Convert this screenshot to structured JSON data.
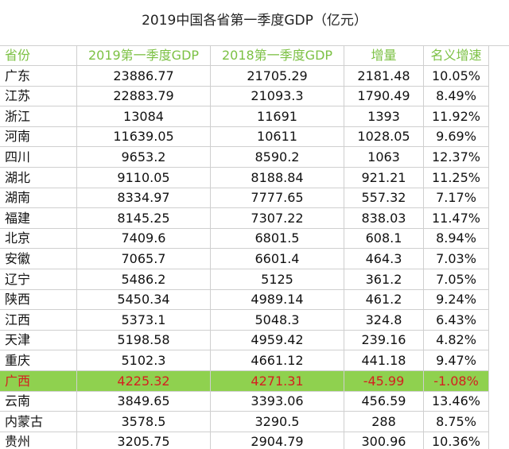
{
  "title": "2019中国各省第一季度GDP（亿元）",
  "table": {
    "headers": [
      "省份",
      "2019第一季度GDP",
      "2018第一季度GDP",
      "增量",
      "名义增速"
    ],
    "rows": [
      [
        "广东",
        "23886.77",
        "21705.29",
        "2181.48",
        "10.05%"
      ],
      [
        "江苏",
        "22883.79",
        "21093.3",
        "1790.49",
        "8.49%"
      ],
      [
        "浙江",
        "13084",
        "11691",
        "1393",
        "11.92%"
      ],
      [
        "河南",
        "11639.05",
        "10611",
        "1028.05",
        "9.69%"
      ],
      [
        "四川",
        "9653.2",
        "8590.2",
        "1063",
        "12.37%"
      ],
      [
        "湖北",
        "9110.05",
        "8188.84",
        "921.21",
        "11.25%"
      ],
      [
        "湖南",
        "8334.97",
        "7777.65",
        "557.32",
        "7.17%"
      ],
      [
        "福建",
        "8145.25",
        "7307.22",
        "838.03",
        "11.47%"
      ],
      [
        "北京",
        "7409.6",
        "6801.5",
        "608.1",
        "8.94%"
      ],
      [
        "安徽",
        "7065.7",
        "6601.4",
        "464.3",
        "7.03%"
      ],
      [
        "辽宁",
        "5486.2",
        "5125",
        "361.2",
        "7.05%"
      ],
      [
        "陕西",
        "5450.34",
        "4989.14",
        "461.2",
        "9.24%"
      ],
      [
        "江西",
        "5373.1",
        "5048.3",
        "324.8",
        "6.43%"
      ],
      [
        "天津",
        "5198.58",
        "4959.42",
        "239.16",
        "4.82%"
      ],
      [
        "重庆",
        "5102.3",
        "4661.12",
        "441.18",
        "9.47%"
      ],
      [
        "广西",
        "4225.32",
        "4271.31",
        "-45.99",
        "-1.08%"
      ],
      [
        "云南",
        "3849.65",
        "3393.06",
        "456.59",
        "13.46%"
      ],
      [
        "内蒙古",
        "3578.5",
        "3290.5",
        "288",
        "8.75%"
      ],
      [
        "贵州",
        "3205.75",
        "2904.79",
        "300.96",
        "10.36%"
      ]
    ]
  }
}
